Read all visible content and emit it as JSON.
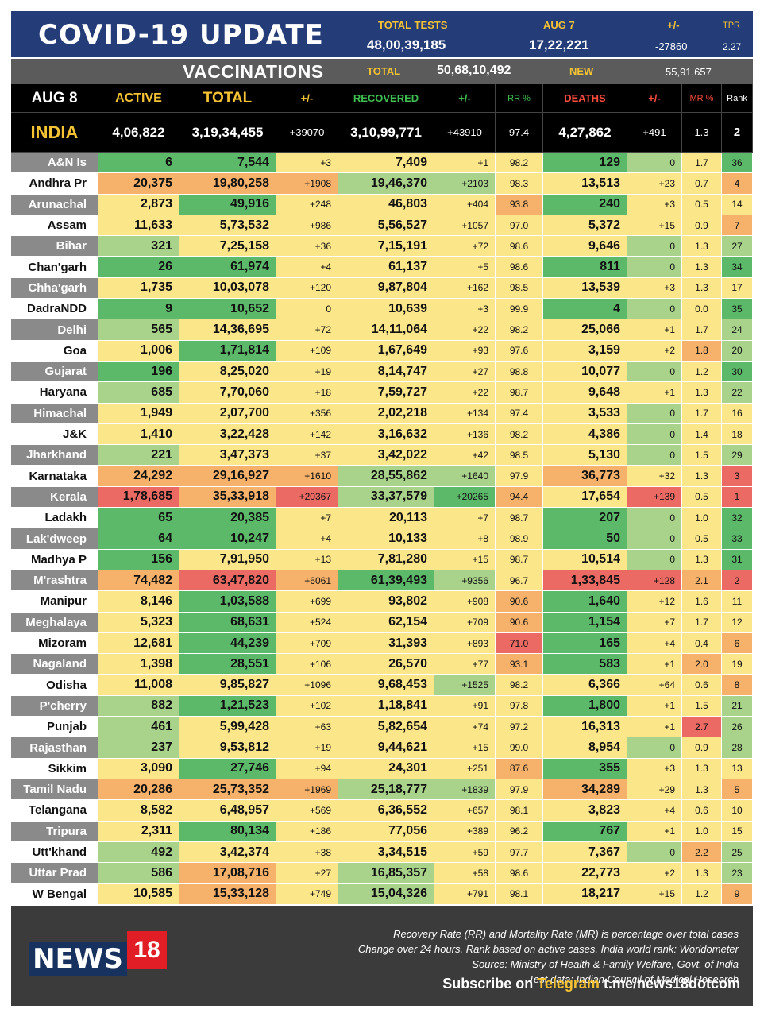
{
  "header": {
    "title": "COVID-19 UPDATE",
    "total_tests_label": "TOTAL TESTS",
    "total_tests_value": "48,00,39,185",
    "aug7_label": "AUG 7",
    "aug7_value": "17,22,221",
    "change_label": "+/-",
    "change_value": "-27860",
    "tpr_label": "TPR",
    "tpr_value": "2.27"
  },
  "vaccinations": {
    "title": "VACCINATIONS",
    "total_label": "TOTAL",
    "total_value": "50,68,10,492",
    "new_label": "NEW",
    "new_value": "55,91,657"
  },
  "columns": [
    "AUG 8",
    "ACTIVE",
    "TOTAL",
    "+/-",
    "RECOVERED",
    "+/-",
    "RR %",
    "DEATHS",
    "+/-",
    "MR %",
    "Rank"
  ],
  "india": [
    "INDIA",
    "4,06,822",
    "3,19,34,455",
    "+39070",
    "3,10,99,771",
    "+43910",
    "97.4",
    "4,27,862",
    "+491",
    "1.3",
    "2"
  ],
  "rows": [
    [
      "A&N Is",
      "6",
      "7,544",
      "+3",
      "7,409",
      "+1",
      "98.2",
      "129",
      "0",
      "1.7",
      "36"
    ],
    [
      "Andhra Pr",
      "20,375",
      "19,80,258",
      "+1908",
      "19,46,370",
      "+2103",
      "98.3",
      "13,513",
      "+23",
      "0.7",
      "4"
    ],
    [
      "Arunachal",
      "2,873",
      "49,916",
      "+248",
      "46,803",
      "+404",
      "93.8",
      "240",
      "+3",
      "0.5",
      "14"
    ],
    [
      "Assam",
      "11,633",
      "5,73,532",
      "+986",
      "5,56,527",
      "+1057",
      "97.0",
      "5,372",
      "+15",
      "0.9",
      "7"
    ],
    [
      "Bihar",
      "321",
      "7,25,158",
      "+36",
      "7,15,191",
      "+72",
      "98.6",
      "9,646",
      "0",
      "1.3",
      "27"
    ],
    [
      "Chan'garh",
      "26",
      "61,974",
      "+4",
      "61,137",
      "+5",
      "98.6",
      "811",
      "0",
      "1.3",
      "34"
    ],
    [
      "Chha'garh",
      "1,735",
      "10,03,078",
      "+120",
      "9,87,804",
      "+162",
      "98.5",
      "13,539",
      "+3",
      "1.3",
      "17"
    ],
    [
      "DadraNDD",
      "9",
      "10,652",
      "0",
      "10,639",
      "+3",
      "99.9",
      "4",
      "0",
      "0.0",
      "35"
    ],
    [
      "Delhi",
      "565",
      "14,36,695",
      "+72",
      "14,11,064",
      "+22",
      "98.2",
      "25,066",
      "+1",
      "1.7",
      "24"
    ],
    [
      "Goa",
      "1,006",
      "1,71,814",
      "+109",
      "1,67,649",
      "+93",
      "97.6",
      "3,159",
      "+2",
      "1.8",
      "20"
    ],
    [
      "Gujarat",
      "196",
      "8,25,020",
      "+19",
      "8,14,747",
      "+27",
      "98.8",
      "10,077",
      "0",
      "1.2",
      "30"
    ],
    [
      "Haryana",
      "685",
      "7,70,060",
      "+18",
      "7,59,727",
      "+22",
      "98.7",
      "9,648",
      "+1",
      "1.3",
      "22"
    ],
    [
      "Himachal",
      "1,949",
      "2,07,700",
      "+356",
      "2,02,218",
      "+134",
      "97.4",
      "3,533",
      "0",
      "1.7",
      "16"
    ],
    [
      "J&K",
      "1,410",
      "3,22,428",
      "+142",
      "3,16,632",
      "+136",
      "98.2",
      "4,386",
      "0",
      "1.4",
      "18"
    ],
    [
      "Jharkhand",
      "221",
      "3,47,373",
      "+37",
      "3,42,022",
      "+42",
      "98.5",
      "5,130",
      "0",
      "1.5",
      "29"
    ],
    [
      "Karnataka",
      "24,292",
      "29,16,927",
      "+1610",
      "28,55,862",
      "+1640",
      "97.9",
      "36,773",
      "+32",
      "1.3",
      "3"
    ],
    [
      "Kerala",
      "1,78,685",
      "35,33,918",
      "+20367",
      "33,37,579",
      "+20265",
      "94.4",
      "17,654",
      "+139",
      "0.5",
      "1"
    ],
    [
      "Ladakh",
      "65",
      "20,385",
      "+7",
      "20,113",
      "+7",
      "98.7",
      "207",
      "0",
      "1.0",
      "32"
    ],
    [
      "Lak'dweep",
      "64",
      "10,247",
      "+4",
      "10,133",
      "+8",
      "98.9",
      "50",
      "0",
      "0.5",
      "33"
    ],
    [
      "Madhya P",
      "156",
      "7,91,950",
      "+13",
      "7,81,280",
      "+15",
      "98.7",
      "10,514",
      "0",
      "1.3",
      "31"
    ],
    [
      "M'rashtra",
      "74,482",
      "63,47,820",
      "+6061",
      "61,39,493",
      "+9356",
      "96.7",
      "1,33,845",
      "+128",
      "2.1",
      "2"
    ],
    [
      "Manipur",
      "8,146",
      "1,03,588",
      "+699",
      "93,802",
      "+908",
      "90.6",
      "1,640",
      "+12",
      "1.6",
      "11"
    ],
    [
      "Meghalaya",
      "5,323",
      "68,631",
      "+524",
      "62,154",
      "+709",
      "90.6",
      "1,154",
      "+7",
      "1.7",
      "12"
    ],
    [
      "Mizoram",
      "12,681",
      "44,239",
      "+709",
      "31,393",
      "+893",
      "71.0",
      "165",
      "+4",
      "0.4",
      "6"
    ],
    [
      "Nagaland",
      "1,398",
      "28,551",
      "+106",
      "26,570",
      "+77",
      "93.1",
      "583",
      "+1",
      "2.0",
      "19"
    ],
    [
      "Odisha",
      "11,008",
      "9,85,827",
      "+1096",
      "9,68,453",
      "+1525",
      "98.2",
      "6,366",
      "+64",
      "0.6",
      "8"
    ],
    [
      "P'cherry",
      "882",
      "1,21,523",
      "+102",
      "1,18,841",
      "+91",
      "97.8",
      "1,800",
      "+1",
      "1.5",
      "21"
    ],
    [
      "Punjab",
      "461",
      "5,99,428",
      "+63",
      "5,82,654",
      "+74",
      "97.2",
      "16,313",
      "+1",
      "2.7",
      "26"
    ],
    [
      "Rajasthan",
      "237",
      "9,53,812",
      "+19",
      "9,44,621",
      "+15",
      "99.0",
      "8,954",
      "0",
      "0.9",
      "28"
    ],
    [
      "Sikkim",
      "3,090",
      "27,746",
      "+94",
      "24,301",
      "+251",
      "87.6",
      "355",
      "+3",
      "1.3",
      "13"
    ],
    [
      "Tamil Nadu",
      "20,286",
      "25,73,352",
      "+1969",
      "25,18,777",
      "+1839",
      "97.9",
      "34,289",
      "+29",
      "1.3",
      "5"
    ],
    [
      "Telangana",
      "8,582",
      "6,48,957",
      "+569",
      "6,36,552",
      "+657",
      "98.1",
      "3,823",
      "+4",
      "0.6",
      "10"
    ],
    [
      "Tripura",
      "2,311",
      "80,134",
      "+186",
      "77,056",
      "+389",
      "96.2",
      "767",
      "+1",
      "1.0",
      "15"
    ],
    [
      "Utt'khand",
      "492",
      "3,42,374",
      "+38",
      "3,34,515",
      "+59",
      "97.7",
      "7,367",
      "0",
      "2.2",
      "25"
    ],
    [
      "Uttar Prad",
      "586",
      "17,08,716",
      "+27",
      "16,85,357",
      "+58",
      "98.6",
      "22,773",
      "+2",
      "1.3",
      "23"
    ],
    [
      "W Bengal",
      "10,585",
      "15,33,128",
      "+749",
      "15,04,326",
      "+791",
      "98.1",
      "18,217",
      "+15",
      "1.2",
      "9"
    ]
  ],
  "colors": {
    "green": "#5db96a",
    "light_green": "#a9d38a",
    "yellow": "#fce68a",
    "orange": "#f6b26b",
    "red": "#ec6a64",
    "header_blue": "#243d78",
    "gold": "#f5c233"
  },
  "footer": {
    "logo_left": "NEWS",
    "logo_right": "18",
    "note1": "Recovery Rate (RR) and Mortality Rate (MR) is percentage over total cases",
    "note2": "Change over 24 hours. Rank based on active cases. India world rank: Worldometer",
    "note3": "Source: Ministry of Health & Family Welfare, Govt. of India",
    "note4": "Test data: Indian Council of Medical Research",
    "subscribe_prefix": "Subscribe on",
    "subscribe_channel": "Telegram",
    "subscribe_link": "t.me/news18dotcom"
  }
}
